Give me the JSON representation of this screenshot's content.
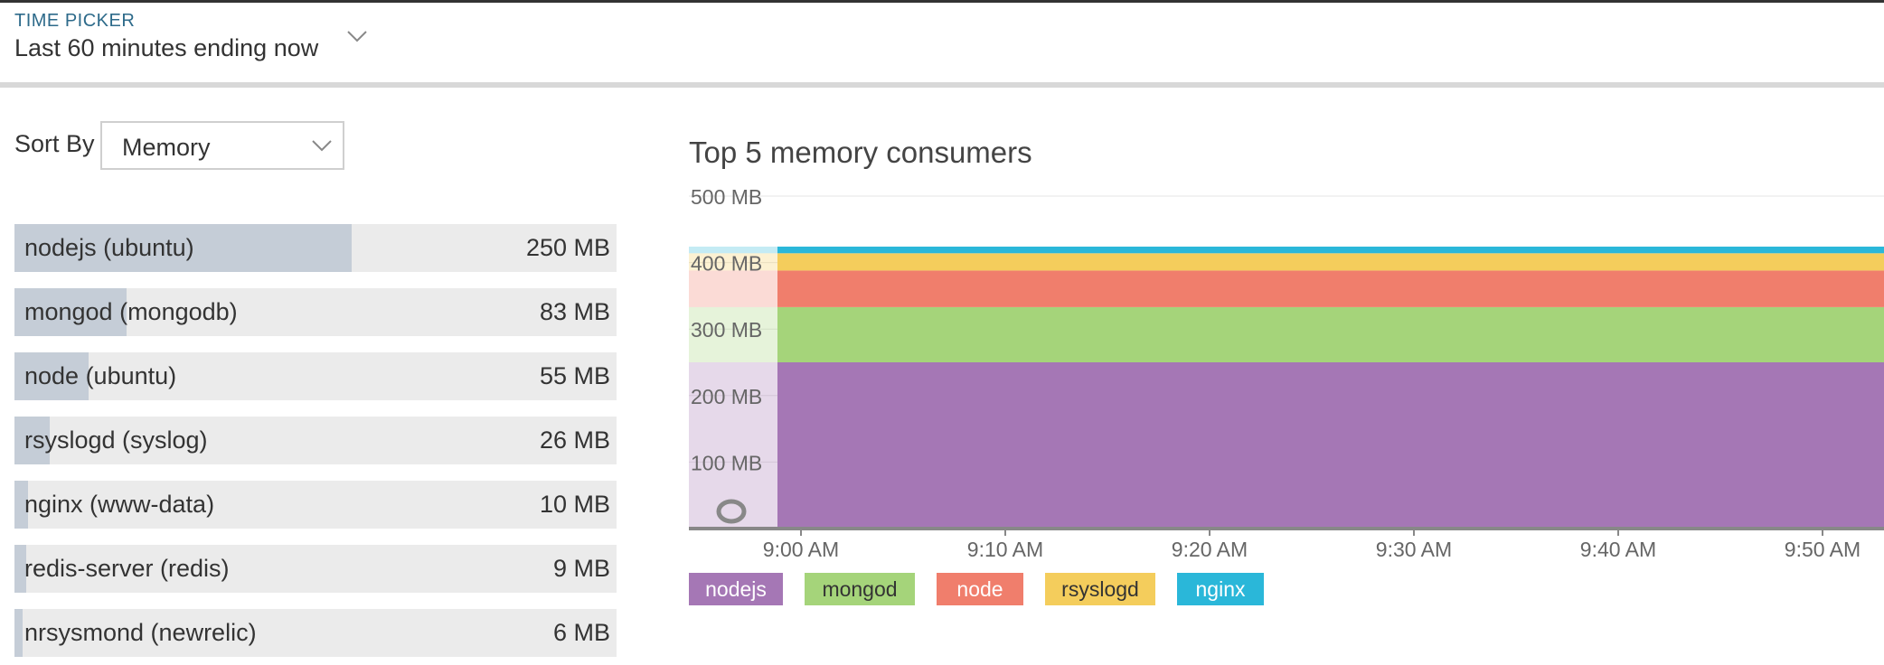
{
  "time_picker": {
    "label": "TIME PICKER",
    "value": "Last 60 minutes ending now",
    "chevron_icon": "chevron-down-icon"
  },
  "sort": {
    "label": "Sort By",
    "selected": "Memory",
    "chevron_icon": "chevron-down-icon"
  },
  "processes": [
    {
      "name": "nodejs (ubuntu)",
      "value": "250 MB",
      "mb": 250
    },
    {
      "name": "mongod (mongodb)",
      "value": "83 MB",
      "mb": 83
    },
    {
      "name": "node (ubuntu)",
      "value": "55 MB",
      "mb": 55
    },
    {
      "name": "rsyslogd (syslog)",
      "value": "26 MB",
      "mb": 26
    },
    {
      "name": "nginx (www-data)",
      "value": "10 MB",
      "mb": 10
    },
    {
      "name": "redis-server (redis)",
      "value": "9 MB",
      "mb": 9
    },
    {
      "name": "nrsysmond (newrelic)",
      "value": "6 MB",
      "mb": 6
    }
  ],
  "chart_data": {
    "type": "area",
    "stacked": true,
    "title": "Top 5 memory consumers",
    "xlabel": "",
    "ylabel": "",
    "ylim": [
      0,
      500
    ],
    "y_ticks": [
      "100 MB",
      "200 MB",
      "300 MB",
      "400 MB",
      "500 MB"
    ],
    "y_tick_values": [
      100,
      200,
      300,
      400,
      500
    ],
    "x_ticks": [
      "9:00 AM",
      "9:10 AM",
      "9:20 AM",
      "9:30 AM",
      "9:40 AM",
      "9:50 AM"
    ],
    "series": [
      {
        "name": "nodejs",
        "value": 250,
        "color": "#a577b5"
      },
      {
        "name": "mongod",
        "value": 83,
        "color": "#a5d47a"
      },
      {
        "name": "node",
        "value": 55,
        "color": "#f07e6c"
      },
      {
        "name": "rsyslogd",
        "value": 26,
        "color": "#f4cd5c"
      },
      {
        "name": "nginx",
        "value": 10,
        "color": "#2ab7d9"
      }
    ],
    "grid": true,
    "legend_position": "bottom-left"
  },
  "colors": {
    "bar_fill": "#c5cdd7",
    "bar_track": "#ebebeb",
    "label_blue": "#2d6a8a"
  }
}
